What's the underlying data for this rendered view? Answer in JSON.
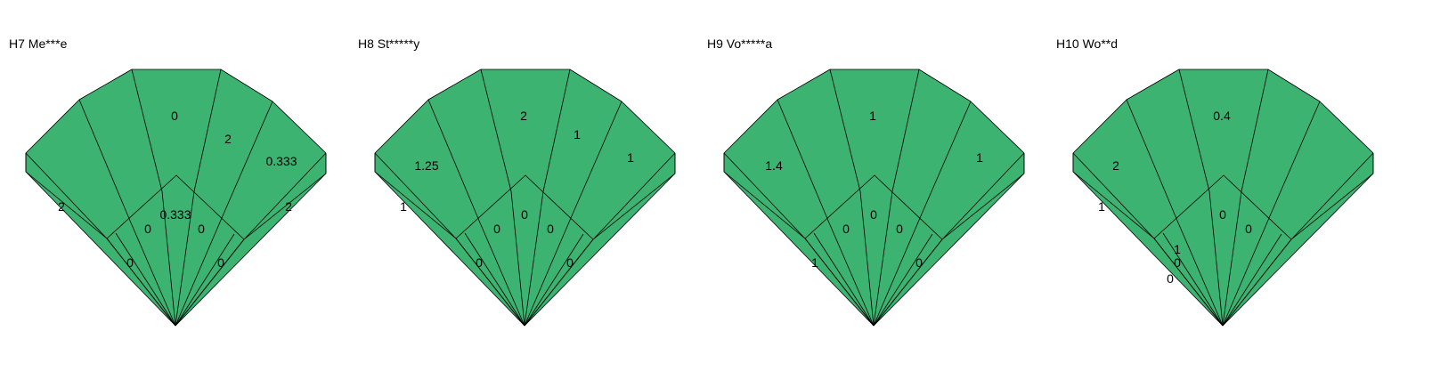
{
  "chart_data": {
    "type": "other",
    "fill_color": "#3cb371",
    "line_color": "#000000",
    "panels": [
      {
        "title": "H7 Me***e",
        "labels": [
          {
            "region": "left-outer",
            "text": "2"
          },
          {
            "region": "center-top",
            "text": "0"
          },
          {
            "region": "right-upper",
            "text": "2"
          },
          {
            "region": "right-mid",
            "text": "0.333"
          },
          {
            "region": "right-outer",
            "text": "2"
          },
          {
            "region": "inner-top",
            "text": "0.333"
          },
          {
            "region": "inner-left",
            "text": "0"
          },
          {
            "region": "inner-right",
            "text": "0"
          },
          {
            "region": "lower-left",
            "text": "0"
          },
          {
            "region": "lower-right",
            "text": "0"
          }
        ]
      },
      {
        "title": "H8 St*****y",
        "labels": [
          {
            "region": "left-mid",
            "text": "1.25"
          },
          {
            "region": "left-outer",
            "text": "1"
          },
          {
            "region": "center-top",
            "text": "2"
          },
          {
            "region": "right-upper",
            "text": "1"
          },
          {
            "region": "right-mid",
            "text": "1"
          },
          {
            "region": "inner-top",
            "text": "0"
          },
          {
            "region": "inner-left",
            "text": "0"
          },
          {
            "region": "inner-right",
            "text": "0"
          },
          {
            "region": "lower-left",
            "text": "0"
          },
          {
            "region": "lower-right",
            "text": "0"
          }
        ]
      },
      {
        "title": "H9 Vo*****a",
        "labels": [
          {
            "region": "left-mid",
            "text": "1.4"
          },
          {
            "region": "center-top",
            "text": "1"
          },
          {
            "region": "right-mid",
            "text": "1"
          },
          {
            "region": "inner-top",
            "text": "0"
          },
          {
            "region": "inner-left",
            "text": "0"
          },
          {
            "region": "inner-right",
            "text": "0"
          },
          {
            "region": "lower-left",
            "text": "1"
          },
          {
            "region": "lower-right",
            "text": "0"
          }
        ]
      },
      {
        "title": "H10 Wo**d",
        "labels": [
          {
            "region": "left-mid",
            "text": "2"
          },
          {
            "region": "left-outer",
            "text": "1"
          },
          {
            "region": "center-top",
            "text": "0.4"
          },
          {
            "region": "inner-top",
            "text": "0"
          },
          {
            "region": "inner-right",
            "text": "0"
          },
          {
            "region": "lower-left",
            "text": "1"
          },
          {
            "region": "lower-left-2",
            "text": "0"
          },
          {
            "region": "lower-left-3",
            "text": "0"
          }
        ]
      }
    ]
  }
}
